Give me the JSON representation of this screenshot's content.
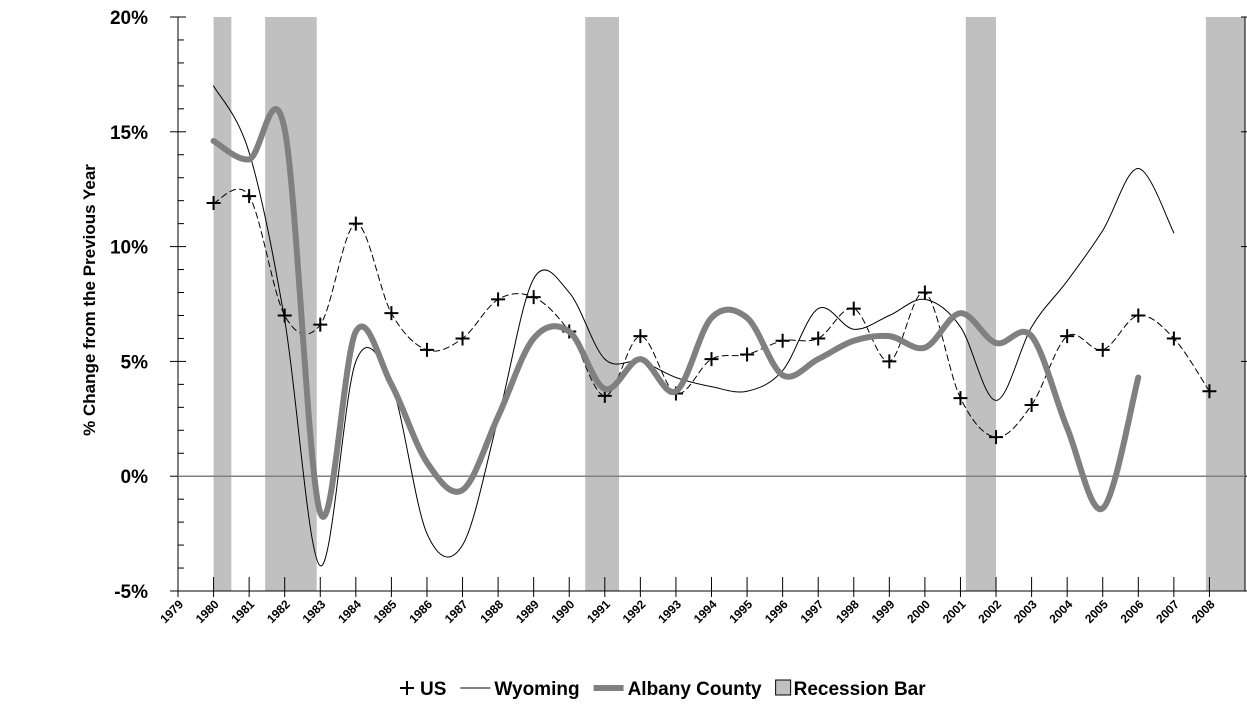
{
  "chart_data": {
    "type": "line",
    "y_label": "% Change from the Previous Year",
    "x": [
      1979,
      1980,
      1981,
      1982,
      1983,
      1984,
      1985,
      1986,
      1987,
      1988,
      1989,
      1990,
      1991,
      1992,
      1993,
      1994,
      1995,
      1996,
      1997,
      1998,
      1999,
      2000,
      2001,
      2002,
      2003,
      2004,
      2005,
      2006,
      2007,
      2008
    ],
    "xlim": [
      1979,
      2009
    ],
    "xticks": [
      1979,
      1980,
      1981,
      1982,
      1983,
      1984,
      1985,
      1986,
      1987,
      1988,
      1989,
      1990,
      1991,
      1992,
      1993,
      1994,
      1995,
      1996,
      1997,
      1998,
      1999,
      2000,
      2001,
      2002,
      2003,
      2004,
      2005,
      2006,
      2007,
      2008
    ],
    "ylim": [
      -5,
      20
    ],
    "yticks": [
      {
        "value": -5,
        "label": "-5%"
      },
      {
        "value": 0,
        "label": "0%"
      },
      {
        "value": 5,
        "label": "5%"
      },
      {
        "value": 10,
        "label": "10%"
      },
      {
        "value": 15,
        "label": "15%"
      },
      {
        "value": 20,
        "label": "20%"
      }
    ],
    "yminorticks": [
      -4,
      -3,
      -2,
      -1,
      1,
      2,
      3,
      4,
      6,
      7,
      8,
      9,
      11,
      12,
      13,
      14,
      16,
      17,
      18,
      19
    ],
    "grid": false,
    "legend": "bottom",
    "series": [
      {
        "name": "US",
        "color": "#000000",
        "style": "dashed-plus",
        "values": [
          null,
          11.9,
          12.2,
          7.0,
          6.6,
          11.0,
          7.1,
          5.5,
          6.0,
          7.7,
          7.8,
          6.3,
          3.5,
          6.1,
          3.6,
          5.1,
          5.3,
          5.9,
          6.0,
          7.3,
          5.0,
          8.0,
          3.4,
          1.7,
          3.1,
          6.1,
          5.5,
          7.0,
          6.0,
          3.7
        ]
      },
      {
        "name": "Wyoming",
        "color": "#000000",
        "style": "thin",
        "values": [
          null,
          17.0,
          14.1,
          6.8,
          -3.9,
          5.0,
          4.0,
          -2.5,
          -3.0,
          2.5,
          8.6,
          8.0,
          5.1,
          5.0,
          4.3,
          3.9,
          3.7,
          4.6,
          7.3,
          6.4,
          7.0,
          7.7,
          6.5,
          3.3,
          6.5,
          8.5,
          10.7,
          13.4,
          10.6,
          null
        ]
      },
      {
        "name": "Albany County",
        "color": "#808080",
        "style": "thick",
        "values": [
          null,
          14.6,
          13.8,
          15.1,
          -1.6,
          6.3,
          4.0,
          0.6,
          -0.6,
          2.6,
          6.0,
          6.3,
          3.8,
          5.1,
          3.7,
          6.9,
          6.9,
          4.4,
          5.1,
          5.9,
          6.1,
          5.6,
          7.1,
          5.8,
          6.1,
          2.1,
          -1.4,
          4.3,
          null,
          null
        ]
      }
    ],
    "recession_name": "Recession Bar",
    "recession_color": "#c0c0c0",
    "recessions": [
      {
        "start": 1980,
        "end": 1980.5
      },
      {
        "start": 1981.45,
        "end": 1982.9
      },
      {
        "start": 1990.45,
        "end": 1991.4
      },
      {
        "start": 2001.15,
        "end": 2002
      },
      {
        "start": 2007.9,
        "end": 2009
      }
    ]
  }
}
